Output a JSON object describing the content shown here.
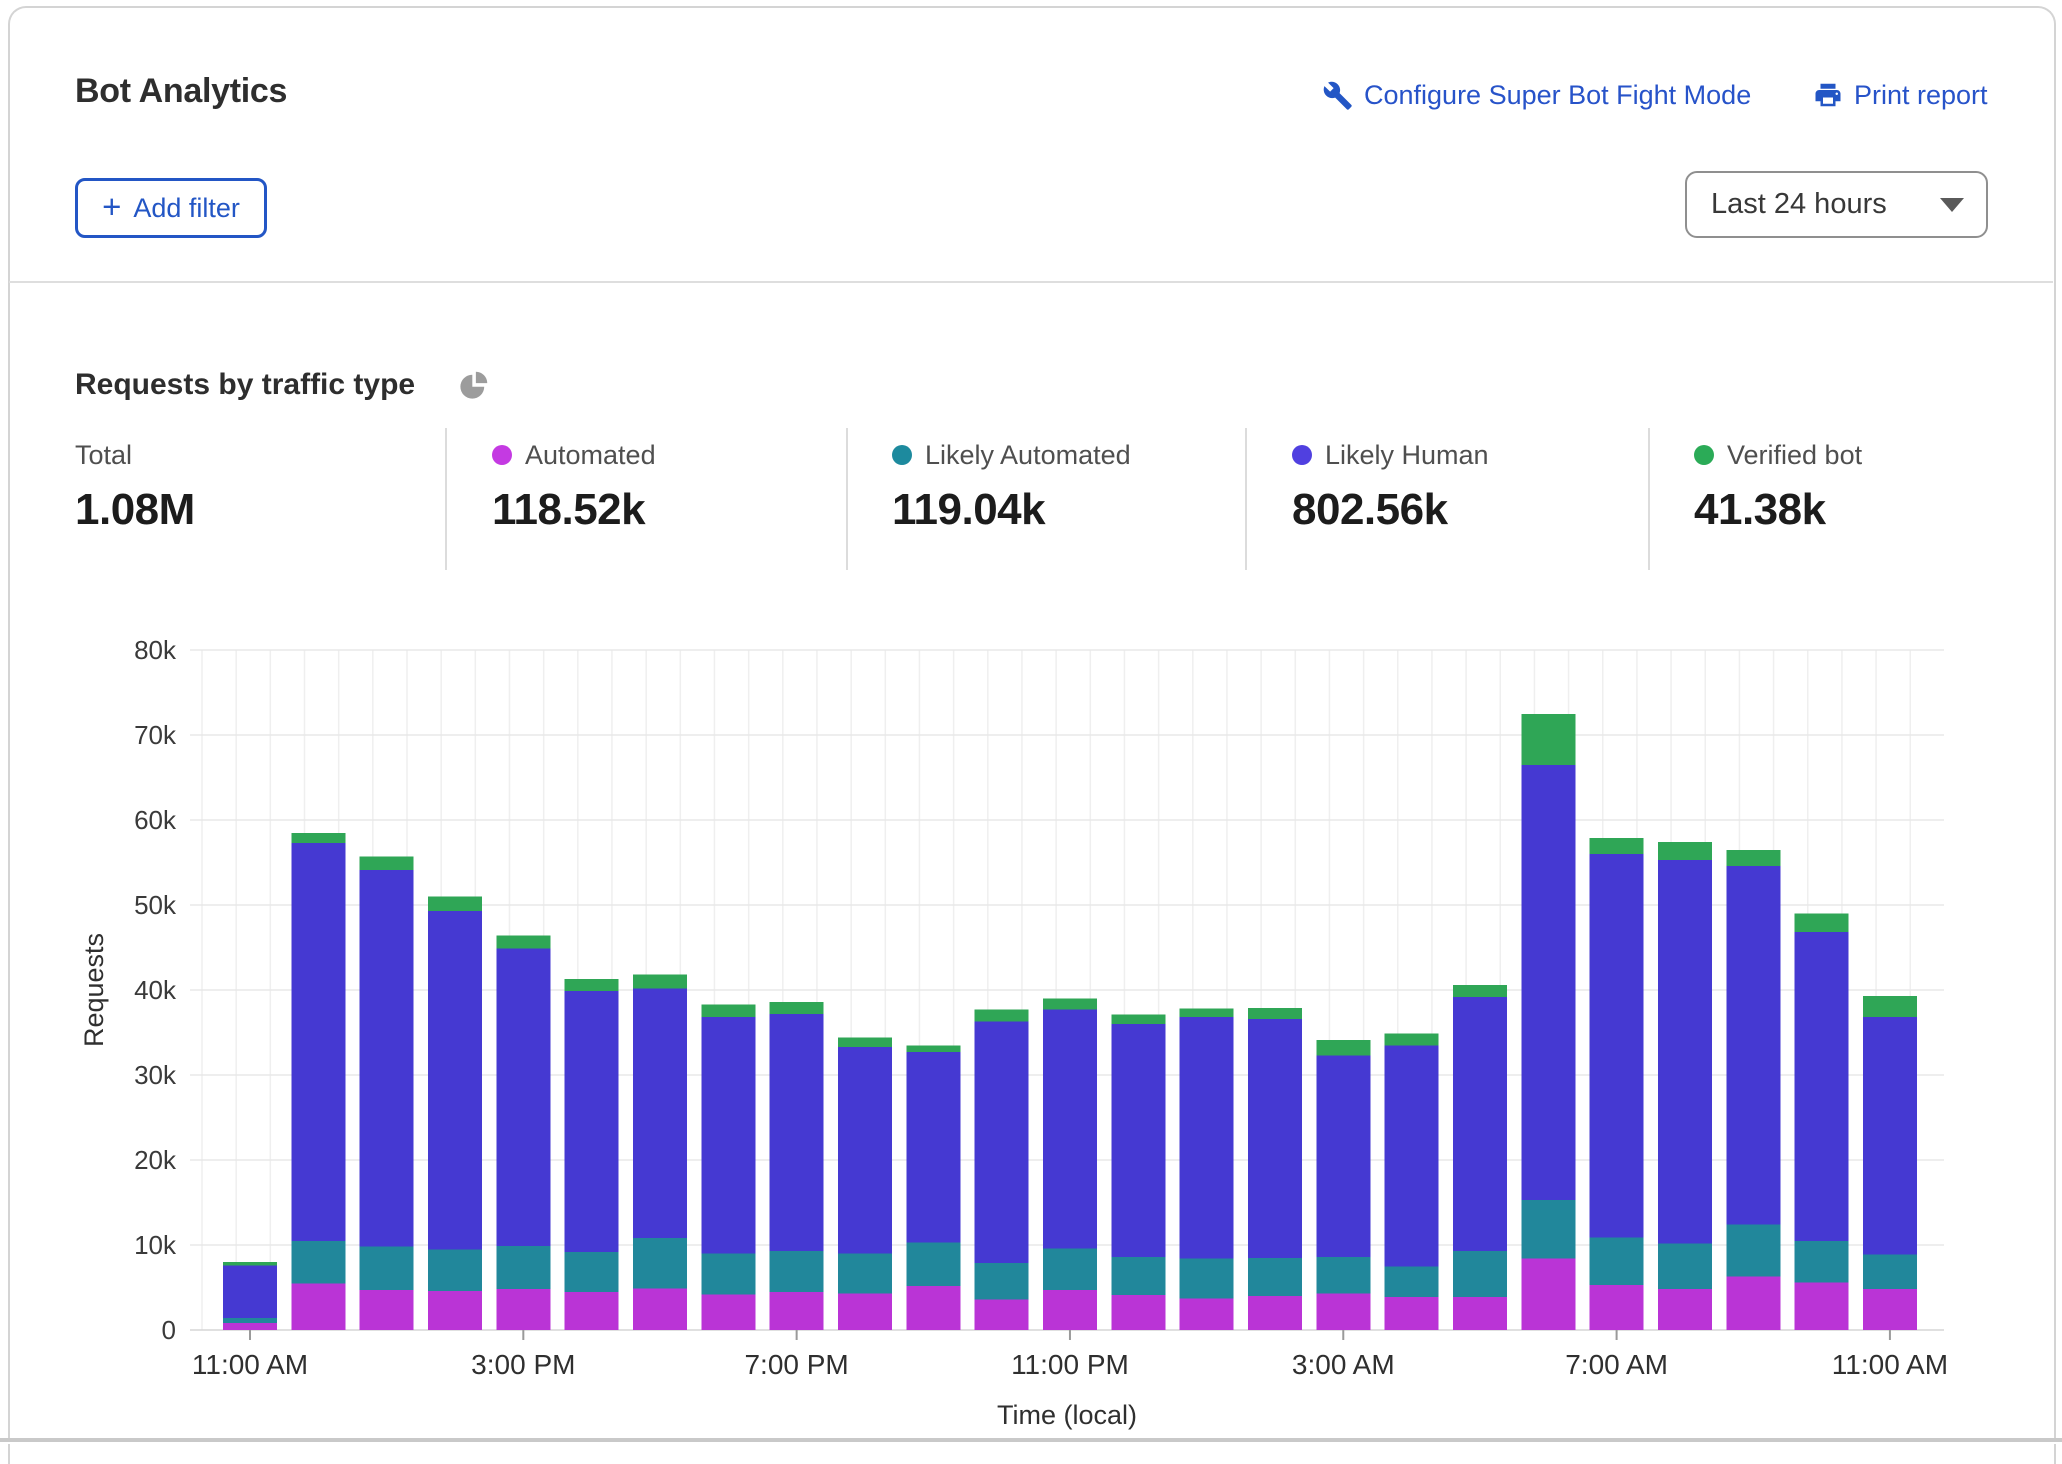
{
  "card": {
    "title": "Bot Analytics",
    "actions": {
      "configure_label": "Configure Super Bot Fight Mode",
      "print_label": "Print report"
    },
    "add_filter_plus": "+",
    "add_filter_label": "Add filter",
    "time_range_value": "Last 24 hours"
  },
  "section": {
    "title": "Requests by traffic type"
  },
  "stats": [
    {
      "label": "Total",
      "value": "1.08M",
      "color": null
    },
    {
      "label": "Automated",
      "value": "118.52k",
      "color": "#c43ae2"
    },
    {
      "label": "Likely Automated",
      "value": "119.04k",
      "color": "#1d8a9e"
    },
    {
      "label": "Likely Human",
      "value": "802.56k",
      "color": "#5040e0"
    },
    {
      "label": "Verified bot",
      "value": "41.38k",
      "color": "#2bab57"
    }
  ],
  "colors": {
    "link_blue": "#2753c9",
    "button_blue": "#2356c5",
    "grid_line": "#e8e8e8",
    "pie_icon_gray": "#9c9c9c"
  },
  "chart_data": {
    "type": "bar",
    "stacked": true,
    "title": "Requests by traffic type",
    "xlabel": "Time (local)",
    "ylabel": "Requests",
    "ylim": [
      0,
      80000
    ],
    "grid": true,
    "legend_position": "top",
    "y_tick_labels": [
      "0",
      "10k",
      "20k",
      "30k",
      "40k",
      "50k",
      "60k",
      "70k",
      "80k"
    ],
    "categories": [
      "11:00 AM",
      "12:00 PM",
      "1:00 PM",
      "2:00 PM",
      "3:00 PM",
      "4:00 PM",
      "5:00 PM",
      "6:00 PM",
      "7:00 PM",
      "8:00 PM",
      "9:00 PM",
      "10:00 PM",
      "11:00 PM",
      "12:00 AM",
      "1:00 AM",
      "2:00 AM",
      "3:00 AM",
      "4:00 AM",
      "5:00 AM",
      "6:00 AM",
      "7:00 AM",
      "8:00 AM",
      "9:00 AM",
      "10:00 AM",
      "11:00 AM"
    ],
    "x_ticks": [
      {
        "index": 0,
        "label": "11:00 AM"
      },
      {
        "index": 4,
        "label": "3:00 PM"
      },
      {
        "index": 8,
        "label": "7:00 PM"
      },
      {
        "index": 12,
        "label": "11:00 PM"
      },
      {
        "index": 16,
        "label": "3:00 AM"
      },
      {
        "index": 20,
        "label": "7:00 AM"
      },
      {
        "index": 24,
        "label": "11:00 AM"
      }
    ],
    "series": [
      {
        "name": "Automated",
        "color": "#ba34d6",
        "values": [
          800,
          5500,
          4700,
          4600,
          4800,
          4500,
          4900,
          4200,
          4500,
          4300,
          5200,
          3600,
          4700,
          4100,
          3700,
          4000,
          4300,
          3900,
          3900,
          8400,
          5300,
          4800,
          6300,
          5600,
          4800
        ]
      },
      {
        "name": "Likely Automated",
        "color": "#21879b",
        "values": [
          600,
          5000,
          5100,
          4900,
          5100,
          4700,
          5900,
          4800,
          4800,
          4700,
          5100,
          4300,
          4900,
          4500,
          4700,
          4500,
          4300,
          3600,
          5400,
          6900,
          5600,
          5400,
          6100,
          4900,
          4100
        ]
      },
      {
        "name": "Likely Human",
        "color": "#4539d2",
        "values": [
          6200,
          46800,
          44300,
          39800,
          35000,
          30700,
          29400,
          27800,
          27900,
          24300,
          22400,
          28400,
          28100,
          27400,
          28400,
          28100,
          23700,
          26000,
          29900,
          51200,
          45100,
          45100,
          42200,
          36300,
          27900
        ]
      },
      {
        "name": "Verified bot",
        "color": "#2fa656",
        "values": [
          400,
          1200,
          1600,
          1700,
          1500,
          1400,
          1600,
          1500,
          1400,
          1100,
          800,
          1400,
          1300,
          1100,
          1000,
          1300,
          1800,
          1400,
          1400,
          6000,
          1900,
          2100,
          1900,
          2200,
          2500
        ]
      }
    ]
  }
}
